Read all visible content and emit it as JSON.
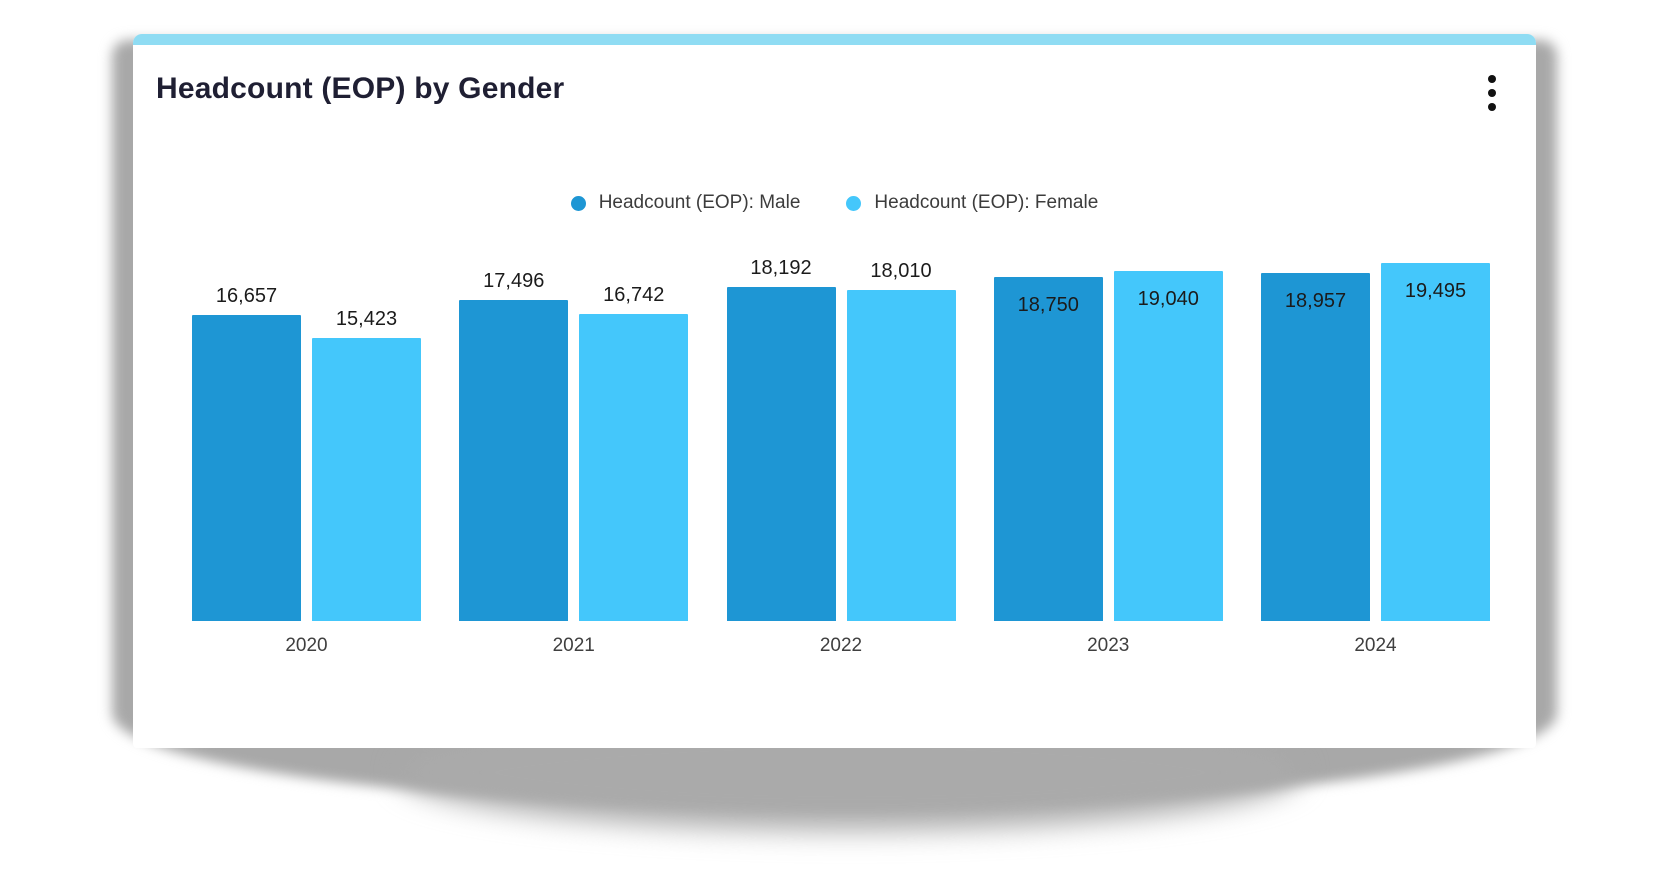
{
  "card": {
    "title": "Headcount (EOP) by Gender",
    "accent_color": "#8fdcf3",
    "menu_icon": "kebab-menu-icon"
  },
  "chart_data": {
    "type": "bar",
    "title": "Headcount (EOP) by Gender",
    "categories": [
      "2020",
      "2021",
      "2022",
      "2023",
      "2024"
    ],
    "series": [
      {
        "name": "Headcount (EOP): Male",
        "color": "#1e96d4",
        "values": [
          16657,
          17496,
          18192,
          18750,
          18957
        ]
      },
      {
        "name": "Headcount (EOP): Female",
        "color": "#44c7fb",
        "values": [
          15423,
          16742,
          18010,
          19040,
          19495
        ]
      }
    ],
    "value_labels_shown": true,
    "value_label_position_by_year": [
      "outside",
      "outside",
      "outside",
      "inside",
      "inside"
    ],
    "xlabel": "",
    "ylabel": "",
    "ylim": [
      0,
      19495
    ],
    "grid": false,
    "legend_position": "top-center"
  }
}
